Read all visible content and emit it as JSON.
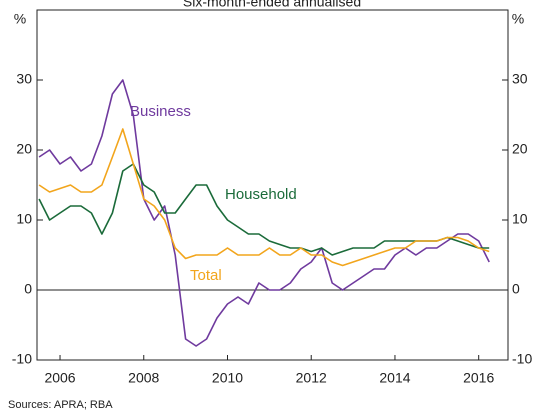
{
  "chart_data": {
    "type": "line",
    "subtitle": "Six-month-ended annualised",
    "y_unit": "%",
    "y2_unit": "%",
    "source": "Sources:   APRA; RBA",
    "x": [
      2006.0,
      2006.25,
      2006.5,
      2006.75,
      2007.0,
      2007.25,
      2007.5,
      2007.75,
      2008.0,
      2008.25,
      2008.5,
      2008.75,
      2009.0,
      2009.25,
      2009.5,
      2009.75,
      2010.0,
      2010.25,
      2010.5,
      2010.75,
      2011.0,
      2011.25,
      2011.5,
      2011.75,
      2012.0,
      2012.25,
      2012.5,
      2012.75,
      2013.0,
      2013.25,
      2013.5,
      2013.75,
      2014.0,
      2014.25,
      2014.5,
      2014.75,
      2015.0,
      2015.25,
      2015.5,
      2015.75,
      2016.0,
      2016.25,
      2016.5,
      2016.75
    ],
    "series": [
      {
        "name": "Business",
        "color": "#6f3a9e",
        "values": [
          19,
          20,
          18,
          19,
          17,
          18,
          22,
          28,
          30,
          25,
          13,
          10,
          12,
          5,
          -7,
          -8,
          -7,
          -4,
          -2,
          -1,
          -2,
          1,
          0,
          0,
          1,
          3,
          4,
          6,
          1,
          0,
          1,
          2,
          3,
          3,
          5,
          6,
          5,
          6,
          6,
          7,
          8,
          8,
          7,
          4
        ]
      },
      {
        "name": "Household",
        "color": "#1b6b3a",
        "values": [
          13,
          10,
          11,
          12,
          12,
          11,
          8,
          11,
          17,
          18,
          15,
          14,
          11,
          11,
          13,
          15,
          15,
          12,
          10,
          9,
          8,
          8,
          7,
          6.5,
          6,
          6,
          5.5,
          6,
          5,
          5.5,
          6,
          6,
          6,
          7,
          7,
          7,
          7,
          7,
          7,
          7.5,
          7,
          6.5,
          6,
          6
        ]
      },
      {
        "name": "Total",
        "color": "#f2a51c",
        "values": [
          15,
          14,
          14.5,
          15,
          14,
          14,
          15,
          19,
          23,
          18,
          13,
          12,
          10,
          6,
          4.5,
          5,
          5,
          5,
          6,
          5,
          5,
          5,
          6,
          5,
          5,
          6,
          5,
          5,
          4,
          3.5,
          4,
          4.5,
          5,
          5.5,
          6,
          6,
          7,
          7,
          7,
          7.5,
          7.5,
          7,
          6,
          5.5
        ]
      }
    ],
    "xlim": [
      2005.95,
      2017.2
    ],
    "xticks": [
      {
        "value": 2006.5,
        "label": "2006"
      },
      {
        "value": 2008.5,
        "label": "2008"
      },
      {
        "value": 2010.5,
        "label": "2010"
      },
      {
        "value": 2012.5,
        "label": "2012"
      },
      {
        "value": 2014.5,
        "label": "2014"
      },
      {
        "value": 2016.5,
        "label": "2016"
      }
    ],
    "ylim": [
      -10,
      40
    ],
    "yticks": [
      -10,
      0,
      10,
      20,
      30
    ],
    "y2lim": [
      -10,
      40
    ],
    "y2ticks": [
      -10,
      0,
      10,
      20,
      30
    ]
  }
}
